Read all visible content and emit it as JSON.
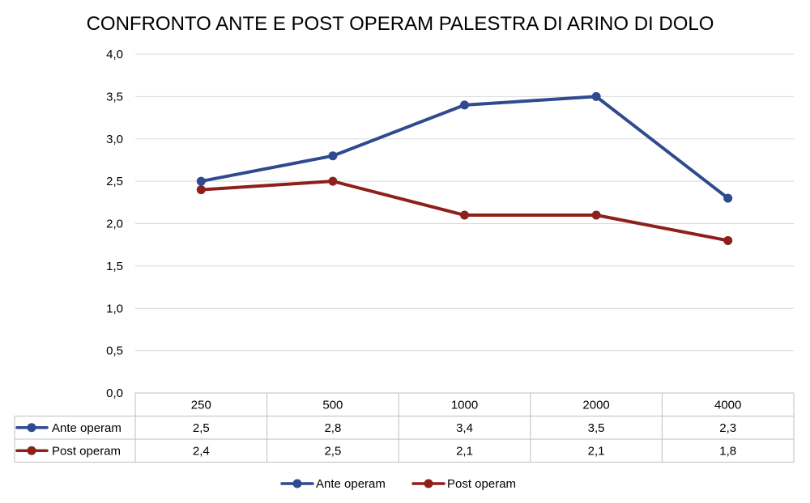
{
  "chart_data": {
    "type": "line",
    "title": "CONFRONTO ANTE E POST OPERAM PALESTRA DI ARINO DI DOLO",
    "categories": [
      "250",
      "500",
      "1000",
      "2000",
      "4000"
    ],
    "series": [
      {
        "name": "Ante operam",
        "values": [
          2.5,
          2.8,
          3.4,
          3.5,
          2.3
        ],
        "color": "#2F4A8F"
      },
      {
        "name": "Post operam",
        "values": [
          2.4,
          2.5,
          2.1,
          2.1,
          1.8
        ],
        "color": "#8E1F1B"
      }
    ],
    "table_values": [
      [
        "2,5",
        "2,8",
        "3,4",
        "3,5",
        "2,3"
      ],
      [
        "2,4",
        "2,5",
        "2,1",
        "2,1",
        "1,8"
      ]
    ],
    "y_ticks": [
      "0,0",
      "0,5",
      "1,0",
      "1,5",
      "2,0",
      "2,5",
      "3,0",
      "3,5",
      "4,0"
    ],
    "ylim": [
      0,
      4
    ],
    "grid": true,
    "legend_position": "bottom",
    "data_table": true
  }
}
